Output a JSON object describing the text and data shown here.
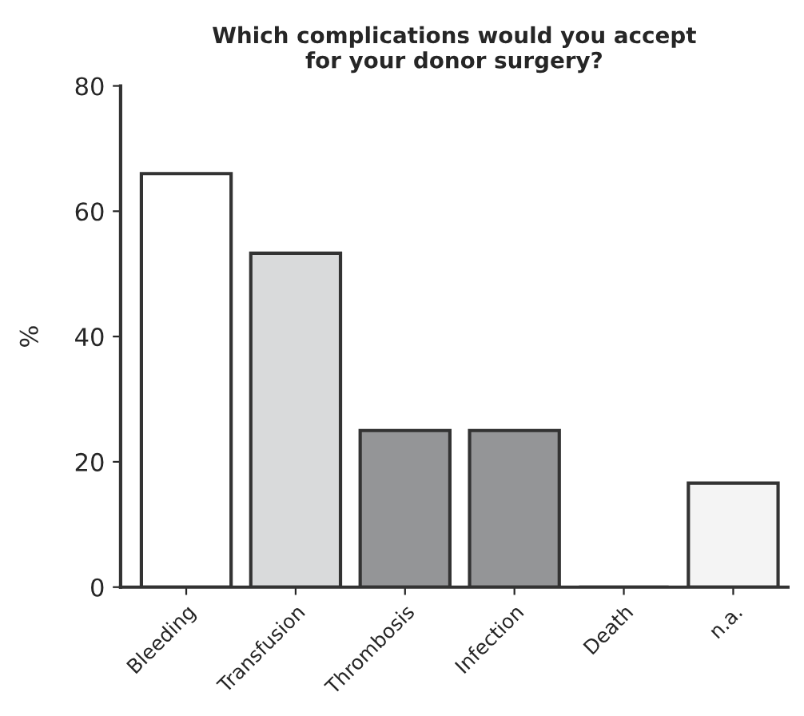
{
  "chart_data": {
    "type": "bar",
    "title": "Which complications would you accept\nfor your donor surgery?",
    "ylabel": "%",
    "categories": [
      "Bleeding",
      "Transfusion",
      "Thrombosis",
      "Infection",
      "Death",
      "n.a."
    ],
    "values": [
      66,
      53.3,
      25,
      25,
      0,
      16.6
    ],
    "colors": [
      "#ffffff",
      "#d9dadb",
      "#939598",
      "#939598",
      "#939598",
      "#f4f4f4"
    ],
    "ylim": [
      0,
      80
    ],
    "yticks": [
      0,
      20,
      40,
      60,
      80
    ],
    "grid": false
  }
}
